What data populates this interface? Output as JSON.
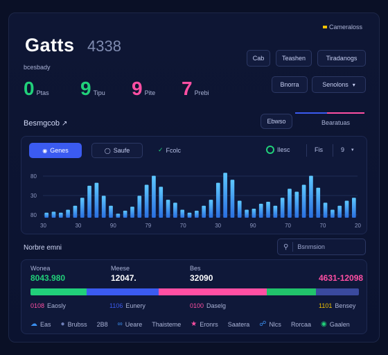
{
  "header": {
    "badge": "Cameraloss",
    "title": "Gatts",
    "title_number": "4338",
    "subtitle": "bcesbady"
  },
  "toolbar": {
    "btn1": "Cab",
    "btn2": "Teashen",
    "btn3": "Tiradanogs",
    "btn4": "Bnorra",
    "btn5": "Senolons",
    "btn5_icon": "chevron-down-icon"
  },
  "stats": [
    {
      "value": "0",
      "label": "Ptas",
      "color": "#21d07a"
    },
    {
      "value": "9",
      "label": "Tipu",
      "color": "#21d07a"
    },
    {
      "value": "9",
      "label": "Pite",
      "color": "#ff4fa3"
    },
    {
      "value": "7",
      "label": "Prebi",
      "color": "#ff4fa3"
    }
  ],
  "section1": {
    "title": "Besmgcob",
    "pill": "Ebwso",
    "right_label": "Bearatuas",
    "accent_segments": [
      "#3b5bf0",
      "#ff4fa3"
    ]
  },
  "chart_panel": {
    "tab_active": "Genes",
    "tab_inactive": "Saufe",
    "legend1": "Fcolc",
    "legend2": "Ilesc",
    "legend3": "Fis",
    "legend4": "9"
  },
  "chart_data": {
    "type": "bar",
    "yticks": [
      "80",
      "30",
      "80"
    ],
    "xticks": [
      "30",
      "30",
      "90",
      "79",
      "70",
      "30",
      "90",
      "70",
      "70",
      "20"
    ],
    "values": [
      5,
      6,
      5,
      8,
      12,
      20,
      32,
      35,
      22,
      12,
      4,
      7,
      11,
      22,
      33,
      42,
      31,
      18,
      15,
      8,
      5,
      7,
      12,
      18,
      35,
      45,
      38,
      17,
      8,
      9,
      14,
      16,
      12,
      20,
      29,
      26,
      33,
      42,
      30,
      15,
      8,
      12,
      17,
      20
    ]
  },
  "section2": {
    "title": "Norbre emni",
    "search_placeholder": "Bsnmsion"
  },
  "gauges": {
    "top_labels": [
      "Wonea",
      "Meese",
      "Bes"
    ],
    "values": [
      {
        "value": "8043.980",
        "color": "#21d07a"
      },
      {
        "value": "12047.",
        "color": "#3b5bf0"
      },
      {
        "value": "32090",
        "color": "#ff4fa3"
      },
      {
        "value": "4631-12098",
        "color": "#ff4fa3"
      }
    ],
    "bar_segments": [
      {
        "fraction": 0.17,
        "color": "#21d07a"
      },
      {
        "fraction": 0.22,
        "color": "#3b5bf0"
      },
      {
        "fraction": 0.33,
        "color": "#ff4fa3"
      },
      {
        "fraction": 0.15,
        "color": "#21c36b"
      },
      {
        "fraction": 0.13,
        "color": "#3a4a9e"
      }
    ],
    "sub_labels": [
      {
        "value": "0108",
        "text": "Eaosly",
        "color": "#ff4fa3"
      },
      {
        "value": "1106",
        "text": "Eunery",
        "color": "#3b5bf0"
      },
      {
        "value": "0100",
        "text": "Daselg",
        "color": "#ff4fa3"
      },
      {
        "value": "1101",
        "text": "Bensey",
        "color": "#f2c200"
      }
    ]
  },
  "footer": {
    "items": [
      "Eas",
      "Brubss",
      "2B8",
      "Ueare",
      "Thaisteme",
      "Eronrs",
      "Saatera",
      "Nlcs",
      "Rorcaa",
      "Pisoc",
      "Gaalen"
    ]
  }
}
